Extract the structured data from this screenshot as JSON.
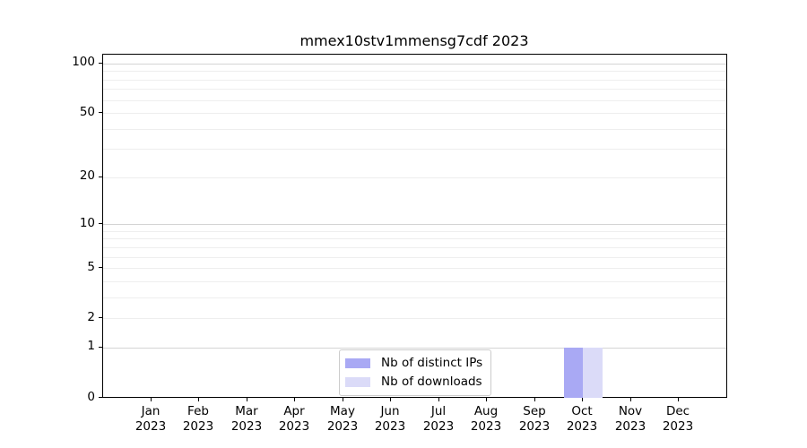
{
  "chart_data": {
    "type": "bar",
    "title": "mmex10stv1mmensg7cdf 2023",
    "scale": "log10(1+y)",
    "categories": [
      {
        "month": "Jan",
        "year": "2023"
      },
      {
        "month": "Feb",
        "year": "2023"
      },
      {
        "month": "Mar",
        "year": "2023"
      },
      {
        "month": "Apr",
        "year": "2023"
      },
      {
        "month": "May",
        "year": "2023"
      },
      {
        "month": "Jun",
        "year": "2023"
      },
      {
        "month": "Jul",
        "year": "2023"
      },
      {
        "month": "Aug",
        "year": "2023"
      },
      {
        "month": "Sep",
        "year": "2023"
      },
      {
        "month": "Oct",
        "year": "2023"
      },
      {
        "month": "Nov",
        "year": "2023"
      },
      {
        "month": "Dec",
        "year": "2023"
      }
    ],
    "series": [
      {
        "name": "Nb of distinct IPs",
        "color": "#a9a9f4",
        "values": [
          0,
          0,
          0,
          0,
          0,
          0,
          0,
          0,
          0,
          1,
          0,
          0
        ]
      },
      {
        "name": "Nb of downloads",
        "color": "#dbdbf8",
        "values": [
          0,
          0,
          0,
          0,
          0,
          0,
          0,
          0,
          0,
          1,
          0,
          0
        ]
      }
    ],
    "y_tick_labels": [
      100,
      50,
      20,
      10,
      5,
      2,
      1,
      0
    ],
    "ylim": [
      0,
      113
    ],
    "grid": {
      "major_values": [
        1,
        10,
        100
      ],
      "minor_values": [
        2,
        3,
        4,
        5,
        6,
        7,
        8,
        9,
        20,
        30,
        40,
        50,
        60,
        70,
        80,
        90
      ]
    },
    "legend_position": "bottom-center",
    "xlabel": "",
    "ylabel": ""
  }
}
